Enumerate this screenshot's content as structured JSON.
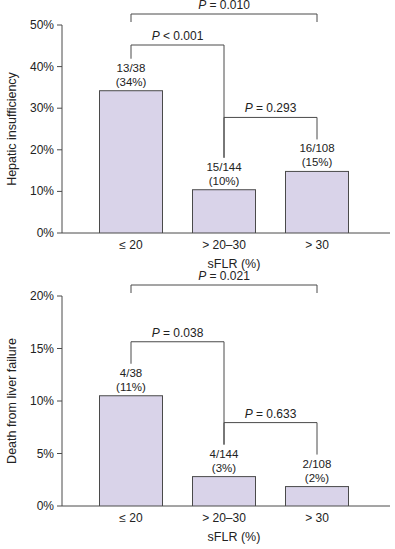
{
  "chart_data": [
    {
      "type": "bar",
      "y_label": "Hepatic insufficiency",
      "x_label": "sFLR (%)",
      "categories": [
        "≤ 20",
        "> 20–30",
        "> 30"
      ],
      "values": [
        34.2,
        10.4,
        14.8
      ],
      "value_labels": [
        "(34%)",
        "(10%)",
        "(15%)"
      ],
      "fractions": [
        "13/38",
        "15/144",
        "16/108"
      ],
      "data_labels": true,
      "color": "#d9d3e9",
      "ylim": [
        0,
        50
      ],
      "yticks": [
        {
          "value": 0,
          "label": "0%"
        },
        {
          "value": 10,
          "label": "10%"
        },
        {
          "value": 20,
          "label": "20%"
        },
        {
          "value": 30,
          "label": "30%"
        },
        {
          "value": 40,
          "label": "40%"
        },
        {
          "value": 50,
          "label": "50%"
        }
      ],
      "grid": false,
      "comparisons": [
        {
          "from": 0,
          "to": 2,
          "label": "P = 0.010"
        },
        {
          "from": 0,
          "to": 1,
          "label": "P < 0.001"
        },
        {
          "from": 1,
          "to": 2,
          "label": "P = 0.293"
        }
      ]
    },
    {
      "type": "bar",
      "y_label": "Death from liver failure",
      "x_label": "sFLR (%)",
      "categories": [
        "≤ 20",
        "> 20–30",
        "> 30"
      ],
      "values": [
        10.5,
        2.8,
        1.85
      ],
      "value_labels": [
        "(11%)",
        "(3%)",
        "(2%)"
      ],
      "fractions": [
        "4/38",
        "4/144",
        "2/108"
      ],
      "data_labels": true,
      "color": "#d9d3e9",
      "ylim": [
        0,
        20
      ],
      "yticks": [
        {
          "value": 0,
          "label": "0%"
        },
        {
          "value": 5,
          "label": "5%"
        },
        {
          "value": 10,
          "label": "10%"
        },
        {
          "value": 15,
          "label": "15%"
        },
        {
          "value": 20,
          "label": "20%"
        }
      ],
      "grid": false,
      "comparisons": [
        {
          "from": 0,
          "to": 2,
          "label": "P = 0.021"
        },
        {
          "from": 0,
          "to": 1,
          "label": "P = 0.038"
        },
        {
          "from": 1,
          "to": 2,
          "label": "P = 0.633"
        }
      ]
    }
  ]
}
